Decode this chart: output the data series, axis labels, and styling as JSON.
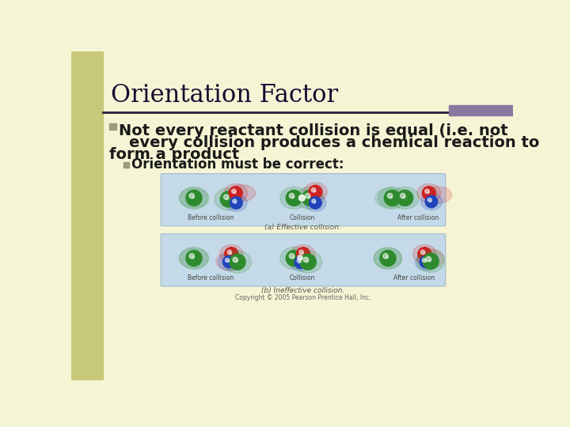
{
  "bg_color": "#f5f5d5",
  "left_bar_color": "#c8c87a",
  "title": "Orientation Factor",
  "title_color": "#1a0830",
  "title_fontsize": 22,
  "bullet_color": "#9b9b7a",
  "main_text_line1": "Not every reactant collision is equal (i.e. not",
  "main_text_line2": "every collision produces a chemical reaction to",
  "main_text_line3": "form a product",
  "sub_text": "Orientation must be correct:",
  "main_text_fontsize": 14,
  "sub_text_fontsize": 12,
  "text_color": "#1a1a1a",
  "divider_color": "#2a1a3a",
  "divider_right_color": "#8878a0",
  "img_bg_color": "#c5dae8",
  "label_effective": "(a) Effective collision.",
  "label_ineffective": "(b) Ineffective collision.",
  "copyright": "Copyright © 2005 Pearson Prentice Hall, Inc.",
  "green_color": "#2d8b2d",
  "red_color": "#cc2222",
  "blue_color": "#2244bb",
  "panel_edge_color": "#a0baca"
}
